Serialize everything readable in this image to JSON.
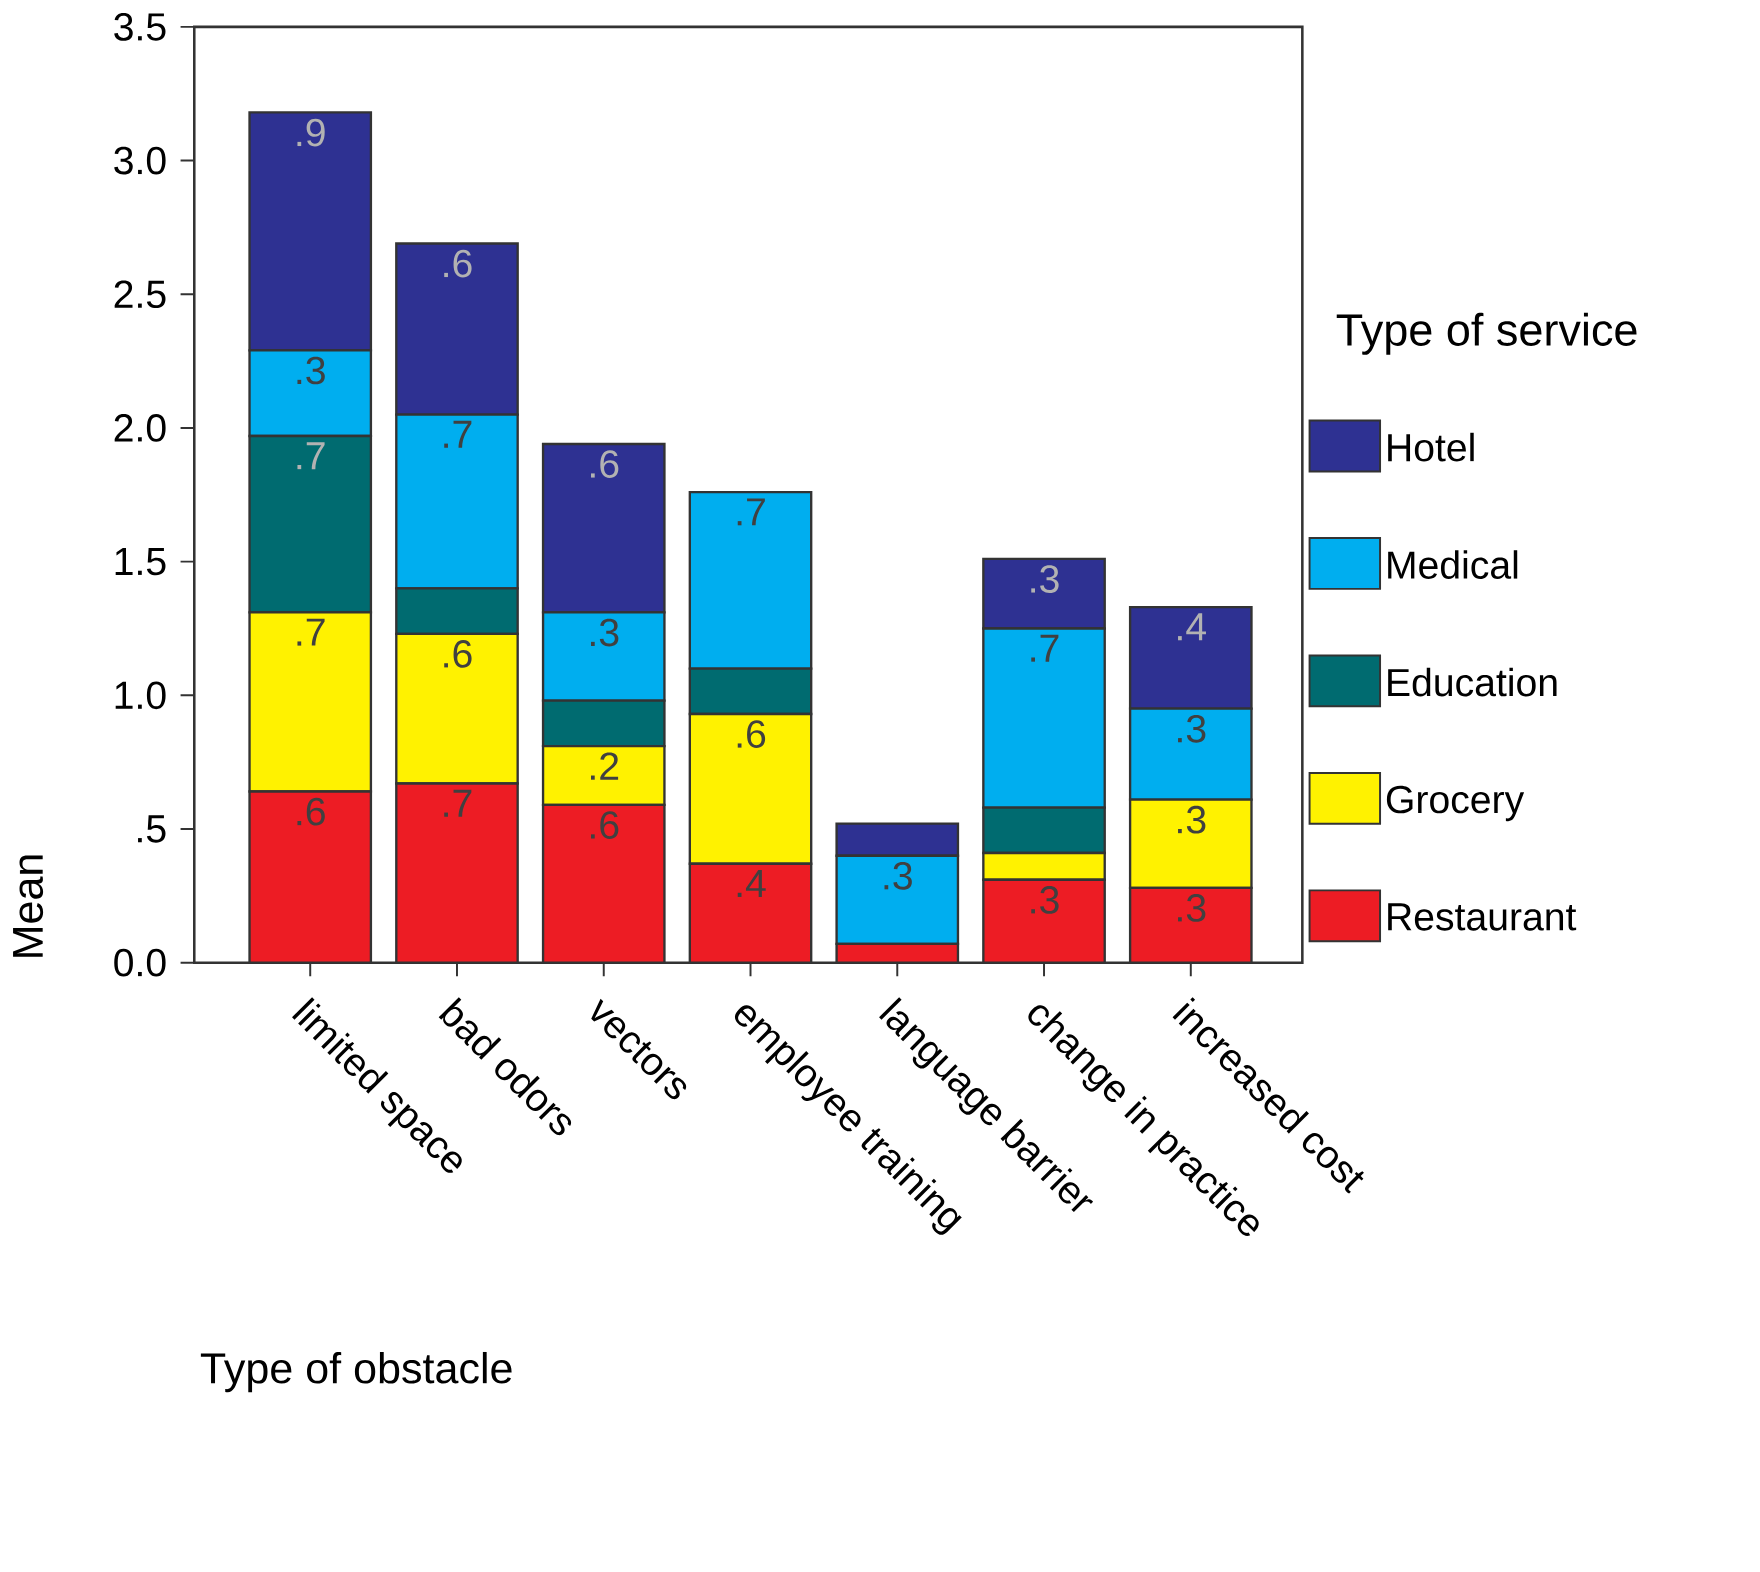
{
  "chart_data": {
    "type": "bar",
    "stacked": true,
    "ylabel": "Mean",
    "xlabel": "Type of obstacle",
    "legend_title": "Type of service",
    "legend": "right",
    "categories": [
      "limited space",
      "bad odors",
      "vectors",
      "employee training",
      "language barrier",
      "change in practice",
      "increased cost"
    ],
    "ylim": [
      0,
      3.5
    ],
    "yticks": [
      {
        "value": 0,
        "label": "0.0"
      },
      {
        "value": 0.5,
        "label": ".5"
      },
      {
        "value": 1,
        "label": "1.0"
      },
      {
        "value": 1.5,
        "label": "1.5"
      },
      {
        "value": 2,
        "label": "2.0"
      },
      {
        "value": 2.5,
        "label": "2.5"
      },
      {
        "value": 3,
        "label": "3.0"
      },
      {
        "value": 3.5,
        "label": "3.5"
      }
    ],
    "series": [
      {
        "name": "Restaurant",
        "color": "#ed1c24",
        "values": [
          0.64,
          0.67,
          0.59,
          0.37,
          0.07,
          0.31,
          0.28
        ],
        "value_labels": [
          ".6",
          ".7",
          ".6",
          ".4",
          null,
          ".3",
          ".3"
        ]
      },
      {
        "name": "Grocery",
        "color": "#fff200",
        "values": [
          0.67,
          0.56,
          0.22,
          0.56,
          0,
          0.1,
          0.33
        ],
        "value_labels": [
          ".7",
          ".6",
          ".2",
          ".6",
          null,
          null,
          ".3"
        ]
      },
      {
        "name": "Education",
        "color": "#006b70",
        "values": [
          0.66,
          0.17,
          0.17,
          0.17,
          0,
          0.17,
          0
        ],
        "value_labels": [
          ".7",
          null,
          null,
          null,
          null,
          null,
          null
        ]
      },
      {
        "name": "Medical",
        "color": "#00aeef",
        "values": [
          0.32,
          0.65,
          0.33,
          0.66,
          0.33,
          0.67,
          0.34
        ],
        "value_labels": [
          ".3",
          ".7",
          ".3",
          ".7",
          ".3",
          ".7",
          ".3"
        ]
      },
      {
        "name": "Hotel",
        "color": "#2e3192",
        "values": [
          0.89,
          0.64,
          0.63,
          0,
          0.12,
          0.26,
          0.38
        ],
        "value_labels": [
          ".9",
          ".6",
          ".6",
          null,
          null,
          ".3",
          ".4"
        ]
      }
    ]
  }
}
